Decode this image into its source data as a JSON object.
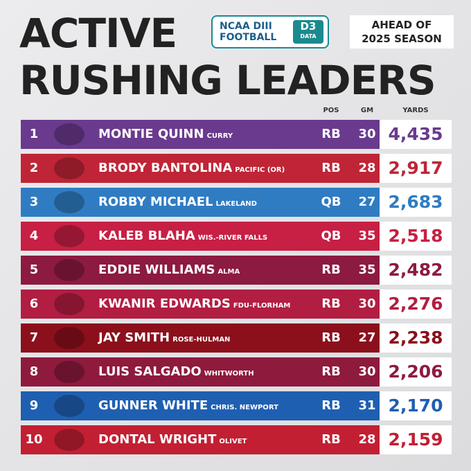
{
  "header": {
    "title_lines": [
      "ACTIVE",
      "RUSHING LEADERS"
    ],
    "badge": {
      "line1": "NCAA DIII",
      "line2": "FOOTBALL",
      "logo_top": "D3",
      "logo_bottom": "DATA"
    },
    "note_lines": [
      "AHEAD OF",
      "2025 SEASON"
    ]
  },
  "table": {
    "columns": [
      "POS",
      "GM",
      "YARDS"
    ],
    "rows": [
      {
        "rank": "1",
        "name": "MONTIE QUINN",
        "school": "CURRY",
        "pos": "RB",
        "gm": "30",
        "yards": "4,435",
        "color": "#6a3a8e"
      },
      {
        "rank": "2",
        "name": "BRODY BANTOLINA",
        "school": "PACIFIC (OR)",
        "pos": "RB",
        "gm": "28",
        "yards": "2,917",
        "color": "#bf2536"
      },
      {
        "rank": "3",
        "name": "ROBBY MICHAEL",
        "school": "LAKELAND",
        "pos": "QB",
        "gm": "27",
        "yards": "2,683",
        "color": "#2f7cc3"
      },
      {
        "rank": "4",
        "name": "KALEB BLAHA",
        "school": "WIS.-RIVER FALLS",
        "pos": "QB",
        "gm": "35",
        "yards": "2,518",
        "color": "#c81f44"
      },
      {
        "rank": "5",
        "name": "EDDIE WILLIAMS",
        "school": "ALMA",
        "pos": "RB",
        "gm": "35",
        "yards": "2,482",
        "color": "#8d1a40"
      },
      {
        "rank": "6",
        "name": "KWANIR EDWARDS",
        "school": "FDU-FLORHAM",
        "pos": "RB",
        "gm": "30",
        "yards": "2,276",
        "color": "#b21d42"
      },
      {
        "rank": "7",
        "name": "JAY SMITH",
        "school": "ROSE-HULMAN",
        "pos": "RB",
        "gm": "27",
        "yards": "2,238",
        "color": "#8c0f1c"
      },
      {
        "rank": "8",
        "name": "LUIS SALGADO",
        "school": "WHITWORTH",
        "pos": "RB",
        "gm": "30",
        "yards": "2,206",
        "color": "#8e1a3e"
      },
      {
        "rank": "9",
        "name": "GUNNER WHITE",
        "school": "CHRIS. NEWPORT",
        "pos": "RB",
        "gm": "31",
        "yards": "2,170",
        "color": "#1f5fb1"
      },
      {
        "rank": "10",
        "name": "DONTAL WRIGHT",
        "school": "OLIVET",
        "pos": "RB",
        "gm": "28",
        "yards": "2,159",
        "color": "#c21f33"
      }
    ]
  }
}
